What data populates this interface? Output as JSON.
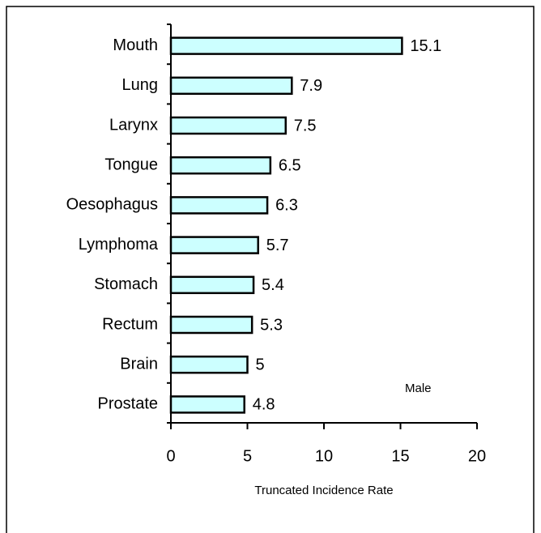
{
  "chart_data": {
    "type": "bar",
    "orientation": "horizontal",
    "categories": [
      "Mouth",
      "Lung",
      "Larynx",
      "Tongue",
      "Oesophagus",
      "Lymphoma",
      "Stomach",
      "Rectum",
      "Brain",
      "Prostate"
    ],
    "values": [
      15.1,
      7.9,
      7.5,
      6.5,
      6.3,
      5.7,
      5.4,
      5.3,
      5,
      4.8
    ],
    "color": "#ccffff",
    "xlabel": "Truncated Incidence Rate",
    "annotation": "Male",
    "xlim": [
      0,
      20
    ],
    "xticks": [
      0,
      5,
      10,
      15,
      20
    ]
  }
}
